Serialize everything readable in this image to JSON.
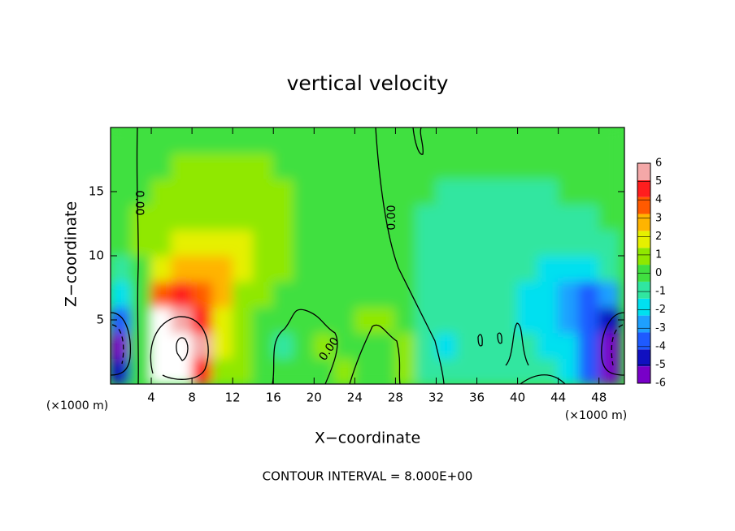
{
  "chart_data": {
    "type": "contour",
    "title": "vertical velocity",
    "x_label": "X−coordinate",
    "y_label": "Z−coordinate",
    "x_unit": "(×1000 m)",
    "y_unit": "(×1000 m)",
    "note": "CONTOUR INTERVAL = 8.000E+00",
    "contour_labels": [
      "0.00",
      "0.00",
      "0.00"
    ],
    "xlim": [
      0,
      50.5
    ],
    "ylim": [
      0,
      20
    ],
    "xticks": [
      4,
      8,
      12,
      16,
      20,
      24,
      28,
      32,
      36,
      40,
      44,
      48
    ],
    "yticks": [
      5,
      10,
      15
    ],
    "x": [
      1,
      3,
      5,
      7,
      9,
      11,
      13,
      15,
      17,
      19,
      21,
      23,
      25,
      27,
      29,
      31,
      33,
      35,
      37,
      39,
      41,
      43,
      45,
      47,
      49
    ],
    "y": [
      1,
      3,
      5,
      7,
      9,
      11,
      13,
      15,
      17,
      19
    ],
    "z": [
      [
        -5,
        0,
        7,
        7,
        5,
        1,
        0.5,
        0,
        0.3,
        0,
        0.3,
        0.5,
        0.3,
        0,
        0.5,
        -0.5,
        -1,
        -0.5,
        -0.5,
        -0.5,
        -1,
        -1,
        -2,
        -4,
        -6
      ],
      [
        -6,
        0,
        7,
        7,
        6,
        1.5,
        0.5,
        0,
        -0.5,
        -0.3,
        0.5,
        0.3,
        0.2,
        0.3,
        1,
        -1,
        -1.5,
        -1,
        -1,
        -0.5,
        -1,
        -1.5,
        -2,
        -4,
        -6
      ],
      [
        -4,
        0,
        6.5,
        6,
        5,
        2,
        0.5,
        0.3,
        0,
        -0.3,
        0.3,
        0.3,
        0.5,
        0.5,
        0,
        -0.5,
        -1,
        -1,
        -1,
        -1,
        -1.5,
        -2,
        -3,
        -4,
        -5
      ],
      [
        -2,
        0,
        4,
        4.5,
        4,
        2.5,
        1,
        0.5,
        0.3,
        0.2,
        0.2,
        0.3,
        0.3,
        0.3,
        0,
        -0.5,
        -1,
        -1,
        -1,
        -1,
        -1.5,
        -2,
        -3,
        -3.5,
        -2.5
      ],
      [
        -0.5,
        0.3,
        2,
        3,
        3,
        2.5,
        1.5,
        0.8,
        0.5,
        0.3,
        0.3,
        0.3,
        0.2,
        0,
        -0.3,
        -0.5,
        -0.8,
        -1,
        -1,
        -1,
        -1.3,
        -1.5,
        -2,
        -2,
        -1
      ],
      [
        0,
        0.5,
        1,
        1.5,
        2,
        2,
        1.5,
        1,
        0.6,
        0.4,
        0.3,
        0.3,
        0.2,
        0,
        -0.3,
        -0.5,
        -0.8,
        -1,
        -1,
        -1,
        -1,
        -1.2,
        -1.2,
        -1,
        -0.5
      ],
      [
        0,
        0.5,
        0.8,
        1,
        1.3,
        1.3,
        1.2,
        1,
        0.6,
        0.4,
        0.3,
        0.3,
        0.2,
        0,
        -0.2,
        -0.5,
        -0.6,
        -0.8,
        -0.8,
        -0.8,
        -0.8,
        -0.8,
        -0.6,
        -0.5,
        -0.3
      ],
      [
        0,
        0.3,
        0.6,
        0.8,
        1,
        1,
        1,
        0.8,
        0.6,
        0.4,
        0.3,
        0.2,
        0.1,
        0,
        -0.2,
        -0.3,
        -0.5,
        -0.5,
        -0.6,
        -0.6,
        -0.5,
        -0.5,
        -0.4,
        -0.3,
        -0.2
      ],
      [
        0,
        0.2,
        0.4,
        0.5,
        0.6,
        0.6,
        0.6,
        0.5,
        0.4,
        0.3,
        0.2,
        0.1,
        0,
        0,
        -0.1,
        -0.2,
        -0.3,
        -0.3,
        -0.3,
        -0.3,
        -0.3,
        -0.3,
        -0.2,
        -0.2,
        -0.1
      ],
      [
        0,
        0.1,
        0.2,
        0.3,
        0.3,
        0.3,
        0.3,
        0.3,
        0.2,
        0.2,
        0.1,
        0.1,
        0,
        0,
        0,
        -0.1,
        -0.1,
        -0.1,
        -0.1,
        -0.1,
        -0.1,
        -0.1,
        -0.1,
        0,
        0
      ]
    ],
    "colorbar": {
      "lim": [
        -6,
        6
      ],
      "ticks": [
        -6,
        -5,
        -4,
        -3,
        -2,
        -1,
        0,
        1,
        2,
        3,
        4,
        5,
        6
      ],
      "colors": [
        "#7800c8",
        "#1010c0",
        "#1e5aff",
        "#1ea0ff",
        "#00e0f0",
        "#30e6a0",
        "#40e040",
        "#90e800",
        "#e6f000",
        "#ffb400",
        "#ff5a00",
        "#ff1e1e",
        "#f4a8a8"
      ],
      "out_of_range_color": "#ffffff"
    }
  }
}
